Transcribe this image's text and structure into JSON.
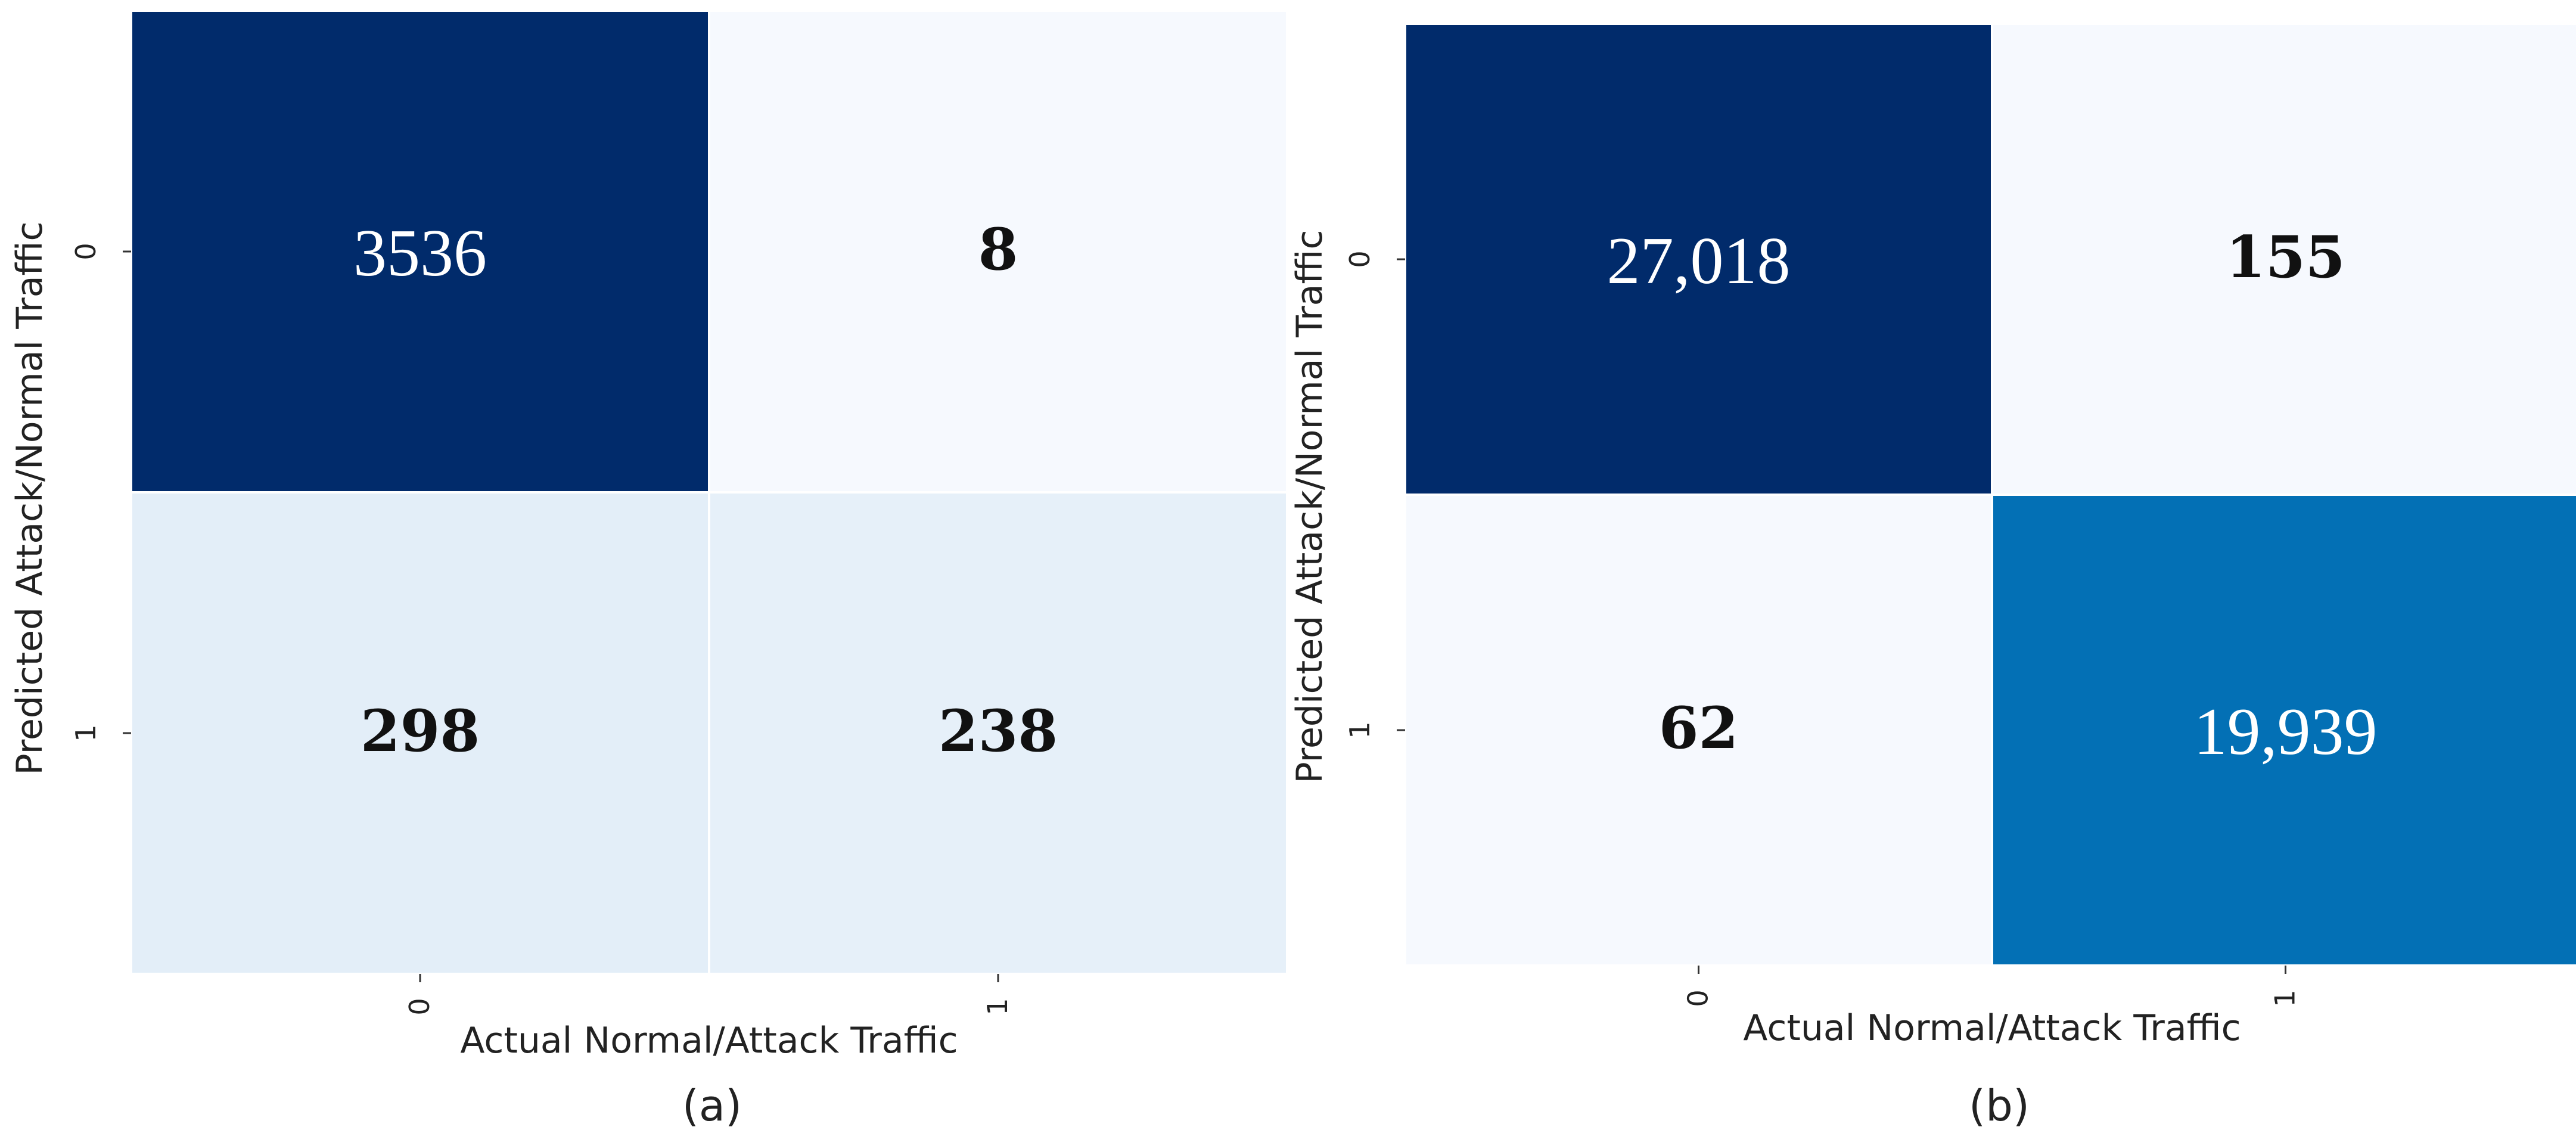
{
  "chart_data": [
    {
      "type": "heatmap",
      "panel_label": "(a)",
      "xlabel": "Actual Normal/Attack Traffic",
      "ylabel": "Predicted Attack/Normal Traffic",
      "x_ticks": [
        "0",
        "1"
      ],
      "y_ticks": [
        "0",
        "1"
      ],
      "cells": [
        {
          "row": 0,
          "col": 0,
          "value": 3536,
          "label": "3536",
          "color": "#012b6b"
        },
        {
          "row": 0,
          "col": 1,
          "value": 8,
          "label": "8",
          "color": "#f6f9fe"
        },
        {
          "row": 1,
          "col": 0,
          "value": 298,
          "label": "298",
          "color": "#e3eef8"
        },
        {
          "row": 1,
          "col": 1,
          "value": 238,
          "label": "238",
          "color": "#e6f0f9"
        }
      ],
      "colorbar": false
    },
    {
      "type": "heatmap",
      "panel_label": "(b)",
      "xlabel": "Actual Normal/Attack Traffic",
      "ylabel": "Predicted Attack/Normal Traffic",
      "x_ticks": [
        "0",
        "1"
      ],
      "y_ticks": [
        "0",
        "1"
      ],
      "cells": [
        {
          "row": 0,
          "col": 0,
          "value": 27018,
          "label": "27,018",
          "color": "#012b6b"
        },
        {
          "row": 0,
          "col": 1,
          "value": 155,
          "label": "155",
          "color": "#f6f9fe"
        },
        {
          "row": 1,
          "col": 0,
          "value": 62,
          "label": "62",
          "color": "#f6f9fe"
        },
        {
          "row": 1,
          "col": 1,
          "value": 19939,
          "label": "19,939",
          "color": "#0370b5"
        }
      ],
      "colorbar": false
    }
  ]
}
